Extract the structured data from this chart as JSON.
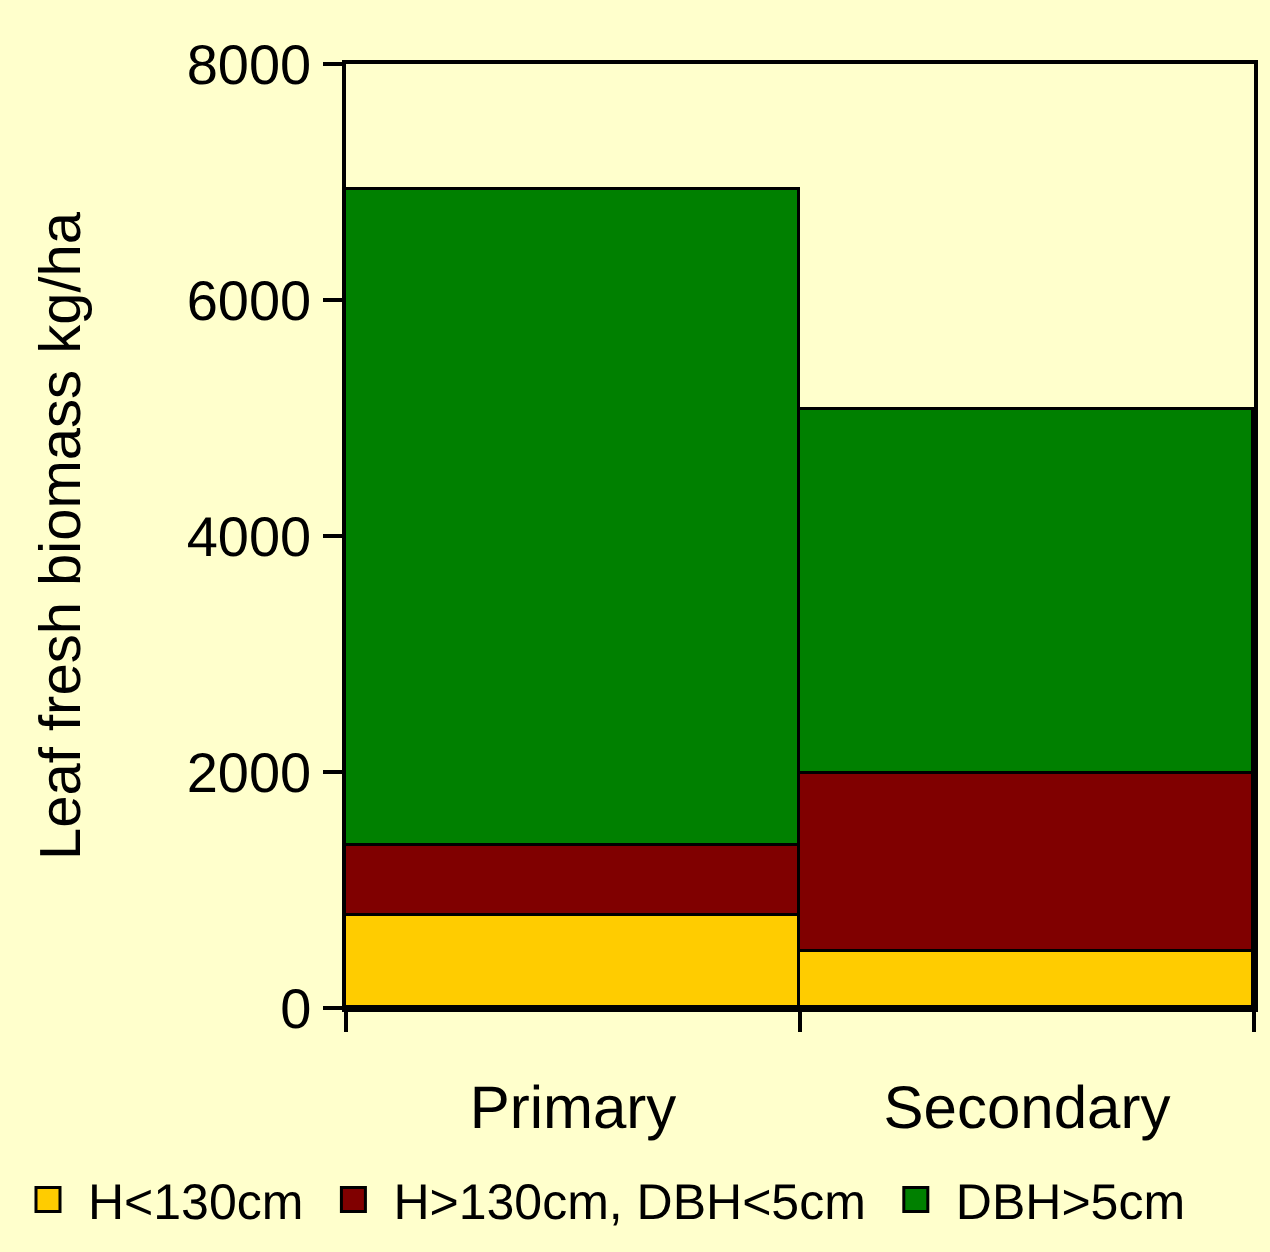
{
  "chart_data": {
    "type": "bar",
    "stacked": true,
    "ylabel": "Leaf fresh biomass kg/ha",
    "categories": [
      "Primary",
      "Secondary"
    ],
    "series": [
      {
        "name": "H<130cm",
        "color": "#ffcc00",
        "values": [
          780,
          480
        ]
      },
      {
        "name": "H>130cm, DBH<5cm",
        "color": "#800000",
        "values": [
          590,
          1510
        ]
      },
      {
        "name": "DBH>5cm",
        "color": "#008000",
        "values": [
          5560,
          3080
        ]
      }
    ],
    "ylim": [
      0,
      8000
    ],
    "yticks": [
      0,
      2000,
      4000,
      6000,
      8000
    ],
    "grid": false,
    "legend": "bottom"
  }
}
